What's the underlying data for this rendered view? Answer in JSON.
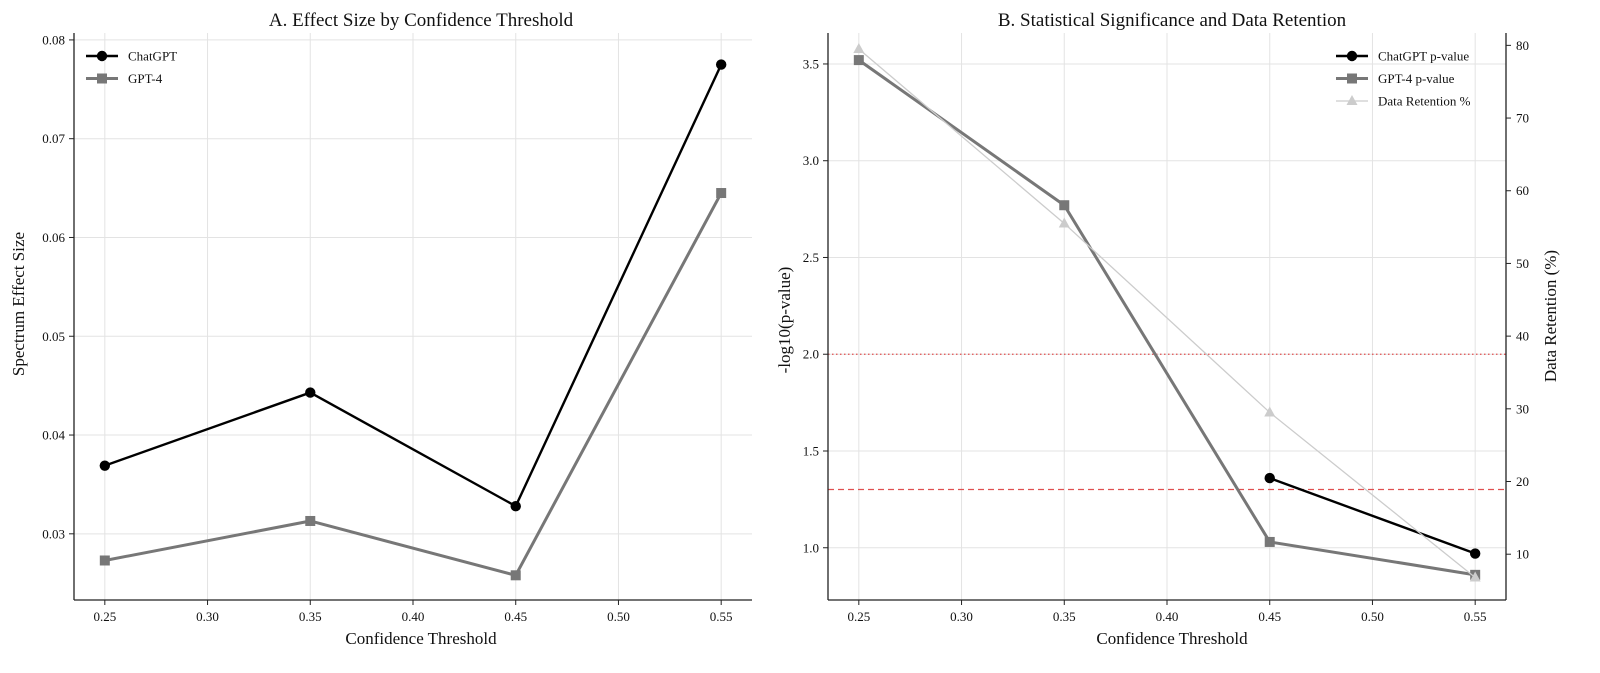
{
  "chart_data": [
    {
      "type": "line",
      "title": "A. Effect Size by Confidence Threshold",
      "xlabel": "Confidence Threshold",
      "ylabel": "Spectrum Effect Size",
      "x": [
        0.25,
        0.35,
        0.45,
        0.55
      ],
      "xticks": [
        "0.25",
        "0.30",
        "0.35",
        "0.40",
        "0.45",
        "0.50",
        "0.55"
      ],
      "xlim": [
        0.235,
        0.565
      ],
      "yticks": [
        "0.03",
        "0.04",
        "0.05",
        "0.06",
        "0.07",
        "0.08"
      ],
      "ylim": [
        0.0233,
        0.0807
      ],
      "grid": true,
      "legend_position": "top-left",
      "series": [
        {
          "name": "ChatGPT",
          "values": [
            0.0369,
            0.0443,
            0.0328,
            0.0775
          ],
          "color": "#000000",
          "marker": "circle"
        },
        {
          "name": "GPT-4",
          "values": [
            0.0273,
            0.0313,
            0.0258,
            0.0645
          ],
          "color": "#777777",
          "marker": "square"
        }
      ]
    },
    {
      "type": "line",
      "title": "B. Statistical Significance and Data Retention",
      "xlabel": "Confidence Threshold",
      "ylabel": "-log10(p-value)",
      "ylabel_right": "Data Retention (%)",
      "x": [
        0.25,
        0.35,
        0.45,
        0.55
      ],
      "xticks": [
        "0.25",
        "0.30",
        "0.35",
        "0.40",
        "0.45",
        "0.50",
        "0.55"
      ],
      "xlim": [
        0.235,
        0.565
      ],
      "yticks": [
        "1.0",
        "1.5",
        "2.0",
        "2.5",
        "3.0",
        "3.5"
      ],
      "ylim": [
        0.73,
        3.66
      ],
      "yticks_right": [
        "10",
        "20",
        "30",
        "40",
        "50",
        "60",
        "70",
        "80"
      ],
      "ylim_right": [
        3.7,
        81.7
      ],
      "grid": true,
      "legend_position": "top-right",
      "series": [
        {
          "name": "ChatGPT p-value",
          "x": [
            0.45,
            0.55
          ],
          "values": [
            1.36,
            0.97
          ],
          "axis": "left",
          "color": "#000000",
          "marker": "circle"
        },
        {
          "name": "GPT-4 p-value",
          "x": [
            0.25,
            0.35,
            0.45,
            0.55
          ],
          "values": [
            3.52,
            2.77,
            1.03,
            0.86
          ],
          "axis": "left",
          "color": "#777777",
          "marker": "square"
        },
        {
          "name": "Data Retention %",
          "x": [
            0.25,
            0.35,
            0.45,
            0.55
          ],
          "values": [
            79.5,
            55.5,
            29.5,
            6.8
          ],
          "axis": "right",
          "color": "#cccccc",
          "marker": "triangle"
        }
      ],
      "reference_lines": [
        {
          "y": 2.0,
          "style": "dotted",
          "color": "#e05050"
        },
        {
          "y": 1.301,
          "style": "dashed",
          "color": "#e05050"
        }
      ]
    }
  ]
}
